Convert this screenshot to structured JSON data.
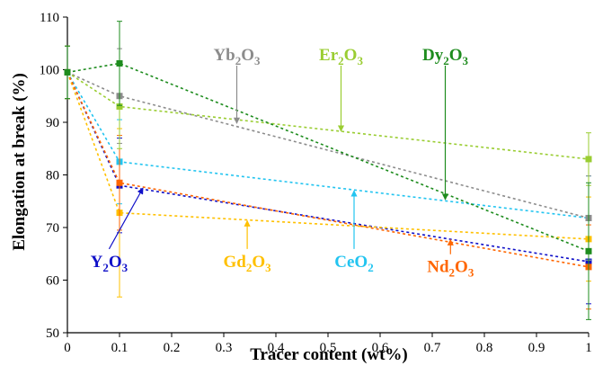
{
  "chart_data": {
    "type": "scatter",
    "title": "",
    "xlabel": "Tracer content (wt%)",
    "ylabel": "Elongation at break (%)",
    "xlim": [
      0,
      1
    ],
    "ylim": [
      50,
      110
    ],
    "xticks": [
      "0",
      "0.1",
      "0.2",
      "0.3",
      "0.4",
      "0.5",
      "0.6",
      "0.7",
      "0.8",
      "0.9",
      "1"
    ],
    "yticks": [
      "50",
      "60",
      "70",
      "80",
      "90",
      "100",
      "110"
    ],
    "grid": false,
    "legend": "none",
    "x": [
      0,
      0.1,
      1
    ],
    "series": [
      {
        "name": "Y2O3",
        "base": "Y",
        "sub": "2",
        "tail": "O",
        "sub2": "3",
        "color": "#1010c8",
        "values": [
          99.5,
          78,
          63.5
        ],
        "errors": [
          5,
          9,
          8
        ]
      },
      {
        "name": "Gd2O3",
        "base": "Gd",
        "sub": "2",
        "tail": "O",
        "sub2": "3",
        "color": "#ffc000",
        "values": [
          99.5,
          72.8,
          67.8
        ],
        "errors": [
          5,
          16,
          8
        ]
      },
      {
        "name": "CeO2",
        "base": "CeO",
        "sub": "2",
        "tail": "",
        "sub2": "",
        "color": "#22c4f0",
        "values": [
          99.5,
          82.5,
          71.8
        ],
        "errors": [
          5,
          8,
          8
        ]
      },
      {
        "name": "Nd2O3",
        "base": "Nd",
        "sub": "2",
        "tail": "O",
        "sub2": "3",
        "color": "#ff6600",
        "values": [
          99.5,
          78.5,
          62.5
        ],
        "errors": [
          5,
          9,
          8
        ]
      },
      {
        "name": "Yb2O3",
        "base": "Yb",
        "sub": "2",
        "tail": "O",
        "sub2": "3",
        "color": "#8c8c8c",
        "values": [
          99.5,
          95,
          71.8
        ],
        "errors": [
          5,
          9,
          8
        ]
      },
      {
        "name": "Er2O3",
        "base": "Er",
        "sub": "2",
        "tail": "O",
        "sub2": "3",
        "color": "#9acd32",
        "values": [
          99.5,
          93,
          83
        ],
        "errors": [
          5,
          8,
          5
        ]
      },
      {
        "name": "Dy2O3",
        "base": "Dy",
        "sub": "2",
        "tail": "O",
        "sub2": "3",
        "color": "#1e8c1e",
        "values": [
          99.5,
          101.2,
          65.5
        ],
        "errors": [
          5,
          8,
          13
        ]
      }
    ],
    "annotations": [
      {
        "series": "Y2O3",
        "label_x": 0.08,
        "label_y": 62.5,
        "arrow_to_x": 0.145,
        "arrow_to_y": 77.5
      },
      {
        "series": "Gd2O3",
        "label_x": 0.345,
        "label_y": 62.5,
        "arrow_to_x": 0.345,
        "arrow_to_y": 71.3
      },
      {
        "series": "CeO2",
        "label_x": 0.55,
        "label_y": 62.5,
        "arrow_to_x": 0.55,
        "arrow_to_y": 77
      },
      {
        "series": "Nd2O3",
        "label_x": 0.735,
        "label_y": 61.5,
        "arrow_to_x": 0.735,
        "arrow_to_y": 67.7
      },
      {
        "series": "Yb2O3",
        "label_x": 0.325,
        "label_y": 101.8,
        "arrow_to_x": 0.325,
        "arrow_to_y": 89.8
      },
      {
        "series": "Er2O3",
        "label_x": 0.525,
        "label_y": 101.8,
        "arrow_to_x": 0.525,
        "arrow_to_y": 88.3
      },
      {
        "series": "Dy2O3",
        "label_x": 0.725,
        "label_y": 101.8,
        "arrow_to_x": 0.725,
        "arrow_to_y": 75.3
      }
    ]
  }
}
